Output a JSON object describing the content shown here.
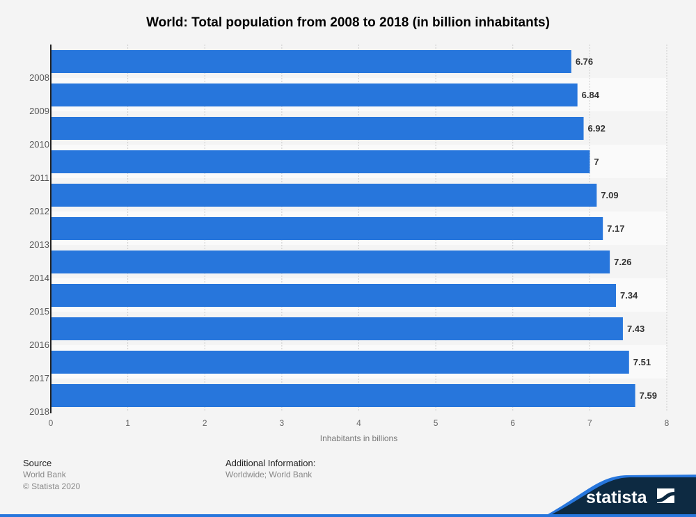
{
  "chart_data": {
    "type": "bar",
    "orientation": "horizontal",
    "title": "World: Total population from 2008 to 2018 (in billion inhabitants)",
    "categories": [
      "2008",
      "2009",
      "2010",
      "2011",
      "2012",
      "2013",
      "2014",
      "2015",
      "2016",
      "2017",
      "2018"
    ],
    "values": [
      6.76,
      6.84,
      6.92,
      7,
      7.09,
      7.17,
      7.26,
      7.34,
      7.43,
      7.51,
      7.59
    ],
    "value_labels": [
      "6.76",
      "6.84",
      "6.92",
      "7",
      "7.09",
      "7.17",
      "7.26",
      "7.34",
      "7.43",
      "7.51",
      "7.59"
    ],
    "xlabel": "Inhabitants in billions",
    "ylabel": "",
    "xlim": [
      0,
      8
    ],
    "xticks": [
      "0",
      "1",
      "2",
      "3",
      "4",
      "5",
      "6",
      "7",
      "8"
    ],
    "grid": true,
    "bar_color": "#2776dc"
  },
  "footer": {
    "source_label": "Source",
    "source": "World Bank",
    "copyright": "© Statista 2020",
    "info_label": "Additional Information:",
    "info": "Worldwide; World Bank"
  },
  "brand": {
    "logo": "statista"
  }
}
